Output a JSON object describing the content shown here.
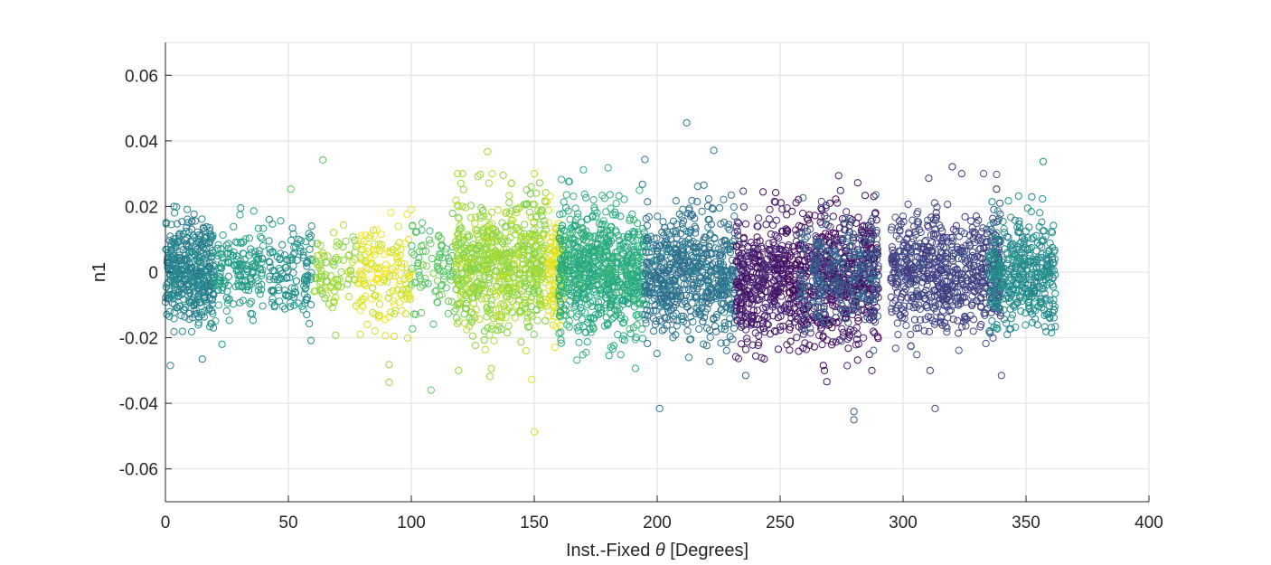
{
  "chart_data": {
    "type": "scatter",
    "marker": "open-circle",
    "xlabel_prefix": "Inst.-Fixed ",
    "xlabel_symbol": "θ",
    "xlabel_suffix": " [Degrees]",
    "ylabel": "n1",
    "xlim": [
      0,
      400
    ],
    "ylim": [
      -0.07,
      0.07
    ],
    "x_ticks": [
      0,
      50,
      100,
      150,
      200,
      250,
      300,
      350,
      400
    ],
    "x_tick_labels": [
      "0",
      "50",
      "100",
      "150",
      "200",
      "250",
      "300",
      "350",
      "400"
    ],
    "y_ticks": [
      0.06,
      0.04,
      0.02,
      0,
      -0.02,
      -0.04,
      -0.06
    ],
    "y_tick_labels": [
      "0.06",
      "0.04",
      "0.02",
      "0",
      "-0.02",
      "-0.04",
      "-0.06"
    ],
    "grid": true,
    "colormap": "viridis",
    "colors": {
      "axis": "#262626",
      "grid": "#e2e2e2",
      "background": "#ffffff"
    },
    "clusters": [
      {
        "x": [
          0,
          20
        ],
        "y_center": 0.0,
        "y_spread": 0.0075,
        "color": 0.45,
        "count": 420
      },
      {
        "x": [
          20,
          40
        ],
        "y_center": 0.0,
        "y_spread": 0.007,
        "color": 0.55,
        "count": 160
      },
      {
        "x": [
          42,
          60
        ],
        "y_center": 0.0,
        "y_spread": 0.0075,
        "color": 0.5,
        "count": 130
      },
      {
        "x": [
          60,
          78
        ],
        "y_center": 0.0,
        "y_spread": 0.007,
        "color": 0.85,
        "count": 90
      },
      {
        "x": [
          78,
          100
        ],
        "y_center": 0.0,
        "y_spread": 0.008,
        "color": 0.95,
        "count": 160
      },
      {
        "x": [
          100,
          118
        ],
        "y_center": 0.0,
        "y_spread": 0.0075,
        "color": 0.75,
        "count": 90
      },
      {
        "x": [
          118,
          155
        ],
        "y_center": 0.002,
        "y_spread": 0.01,
        "color": 0.85,
        "count": 700
      },
      {
        "x": [
          155,
          162
        ],
        "y_center": 0.0,
        "y_spread": 0.009,
        "color": 0.95,
        "count": 140
      },
      {
        "x": [
          160,
          195
        ],
        "y_center": 0.0,
        "y_spread": 0.0095,
        "color": 0.62,
        "count": 750
      },
      {
        "x": [
          195,
          232
        ],
        "y_center": -0.001,
        "y_spread": 0.009,
        "color": 0.38,
        "count": 650
      },
      {
        "x": [
          232,
          252
        ],
        "y_center": -0.002,
        "y_spread": 0.0095,
        "color": 0.08,
        "count": 380
      },
      {
        "x": [
          252,
          290
        ],
        "y_center": -0.002,
        "y_spread": 0.01,
        "color": 0.05,
        "count": 650
      },
      {
        "x": [
          258,
          290
        ],
        "y_center": 0.0,
        "y_spread": 0.009,
        "color": 0.3,
        "count": 250
      },
      {
        "x": [
          295,
          340
        ],
        "y_center": 0.0,
        "y_spread": 0.009,
        "color": 0.2,
        "count": 700
      },
      {
        "x": [
          335,
          362
        ],
        "y_center": 0.0,
        "y_spread": 0.008,
        "color": 0.48,
        "count": 420
      }
    ],
    "outliers": [
      {
        "x": 2,
        "y": -0.0285,
        "color": 0.45
      },
      {
        "x": 15,
        "y": -0.0265,
        "color": 0.45
      },
      {
        "x": 23,
        "y": -0.022,
        "color": 0.55
      },
      {
        "x": 64,
        "y": 0.0342,
        "color": 0.75
      },
      {
        "x": 51,
        "y": 0.0253,
        "color": 0.75
      },
      {
        "x": 91,
        "y": -0.0336,
        "color": 0.85
      },
      {
        "x": 91,
        "y": -0.0282,
        "color": 0.85
      },
      {
        "x": 108,
        "y": -0.036,
        "color": 0.75
      },
      {
        "x": 131,
        "y": 0.0367,
        "color": 0.85
      },
      {
        "x": 128,
        "y": 0.0298,
        "color": 0.85
      },
      {
        "x": 132,
        "y": -0.0318,
        "color": 0.85
      },
      {
        "x": 149,
        "y": -0.0327,
        "color": 0.95
      },
      {
        "x": 150,
        "y": -0.0487,
        "color": 0.95
      },
      {
        "x": 170,
        "y": 0.0312,
        "color": 0.62
      },
      {
        "x": 180,
        "y": 0.0318,
        "color": 0.62
      },
      {
        "x": 195,
        "y": 0.0343,
        "color": 0.38
      },
      {
        "x": 194,
        "y": 0.0268,
        "color": 0.38
      },
      {
        "x": 201,
        "y": -0.0416,
        "color": 0.38
      },
      {
        "x": 212,
        "y": 0.0455,
        "color": 0.38
      },
      {
        "x": 223,
        "y": 0.0371,
        "color": 0.38
      },
      {
        "x": 219,
        "y": 0.0265,
        "color": 0.38
      },
      {
        "x": 236,
        "y": -0.0315,
        "color": 0.3
      },
      {
        "x": 269,
        "y": -0.0334,
        "color": 0.05
      },
      {
        "x": 280,
        "y": -0.0425,
        "color": 0.3
      },
      {
        "x": 280,
        "y": -0.045,
        "color": 0.3
      },
      {
        "x": 313,
        "y": -0.0416,
        "color": 0.2
      },
      {
        "x": 320,
        "y": 0.0321,
        "color": 0.08
      },
      {
        "x": 338,
        "y": 0.0253,
        "color": 0.08
      },
      {
        "x": 340,
        "y": -0.0315,
        "color": 0.2
      },
      {
        "x": 357,
        "y": 0.0337,
        "color": 0.48
      },
      {
        "x": 347,
        "y": 0.0232,
        "color": 0.48
      }
    ]
  }
}
